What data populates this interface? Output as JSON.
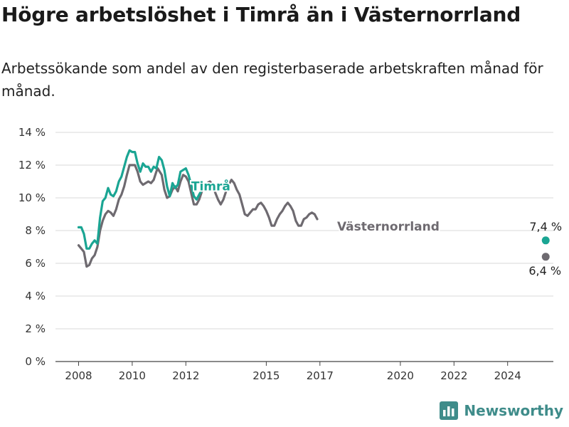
{
  "header": {
    "title": "Högre arbetslöshet i Timrå än i Västernorrland",
    "subtitle": "Arbetssökande som andel av den registerbaserade arbetskraften månad för månad."
  },
  "brand": {
    "name": "Newsworthy",
    "icon": "bar-chart-logo-icon",
    "color": "#3f8c8a"
  },
  "chart_data": {
    "type": "line",
    "title": "",
    "xlabel": "",
    "ylabel": "",
    "ylim": [
      0,
      14
    ],
    "xlim": [
      2007.6,
      2025.8
    ],
    "grid": true,
    "y_ticks": [
      {
        "value": 0,
        "label": "0 %"
      },
      {
        "value": 2,
        "label": "2 %"
      },
      {
        "value": 4,
        "label": "4 %"
      },
      {
        "value": 6,
        "label": "6 %"
      },
      {
        "value": 8,
        "label": "8 %"
      },
      {
        "value": 10,
        "label": "10 %"
      },
      {
        "value": 12,
        "label": "12 %"
      },
      {
        "value": 14,
        "label": "14 %"
      }
    ],
    "x_ticks": [
      {
        "value": 2008,
        "label": "2008"
      },
      {
        "value": 2010,
        "label": "2010"
      },
      {
        "value": 2012,
        "label": "2012"
      },
      {
        "value": 2015,
        "label": "2015"
      },
      {
        "value": 2017,
        "label": "2017"
      },
      {
        "value": 2020,
        "label": "2020"
      },
      {
        "value": 2022,
        "label": "2022"
      },
      {
        "value": 2024,
        "label": "2024"
      }
    ],
    "series": [
      {
        "name": "Västernorrland",
        "color": "#6e6a70",
        "end_label": "6,4 %",
        "points": [
          [
            2008.0,
            7.1
          ],
          [
            2008.1,
            6.9
          ],
          [
            2008.2,
            6.7
          ],
          [
            2008.3,
            5.8
          ],
          [
            2008.4,
            5.9
          ],
          [
            2008.5,
            6.3
          ],
          [
            2008.6,
            6.5
          ],
          [
            2008.7,
            7.0
          ],
          [
            2008.8,
            8.0
          ],
          [
            2008.9,
            8.6
          ],
          [
            2009.0,
            9.0
          ],
          [
            2009.1,
            9.2
          ],
          [
            2009.2,
            9.1
          ],
          [
            2009.3,
            8.9
          ],
          [
            2009.4,
            9.3
          ],
          [
            2009.5,
            9.9
          ],
          [
            2009.6,
            10.2
          ],
          [
            2009.7,
            10.7
          ],
          [
            2009.8,
            11.4
          ],
          [
            2009.9,
            12.0
          ],
          [
            2010.0,
            12.0
          ],
          [
            2010.1,
            12.0
          ],
          [
            2010.2,
            11.6
          ],
          [
            2010.3,
            11.0
          ],
          [
            2010.4,
            10.8
          ],
          [
            2010.5,
            10.9
          ],
          [
            2010.6,
            11.0
          ],
          [
            2010.7,
            10.9
          ],
          [
            2010.8,
            11.1
          ],
          [
            2010.9,
            11.6
          ],
          [
            2010.95,
            11.8
          ],
          [
            2011.1,
            11.4
          ],
          [
            2011.2,
            10.5
          ],
          [
            2011.3,
            10.0
          ],
          [
            2011.4,
            10.1
          ],
          [
            2011.5,
            10.5
          ],
          [
            2011.6,
            10.7
          ],
          [
            2011.7,
            10.4
          ],
          [
            2011.8,
            11.0
          ],
          [
            2011.9,
            11.4
          ],
          [
            2012.0,
            11.3
          ],
          [
            2012.1,
            11.0
          ],
          [
            2012.2,
            10.3
          ],
          [
            2012.3,
            9.6
          ],
          [
            2012.4,
            9.6
          ],
          [
            2012.5,
            9.9
          ],
          [
            2012.6,
            10.4
          ],
          [
            2012.7,
            10.7
          ],
          [
            2012.8,
            10.9
          ],
          [
            2012.9,
            11.0
          ],
          [
            2013.0,
            10.8
          ],
          [
            2013.1,
            10.3
          ],
          [
            2013.2,
            9.9
          ],
          [
            2013.3,
            9.6
          ],
          [
            2013.4,
            9.9
          ],
          [
            2013.5,
            10.4
          ],
          [
            2013.6,
            10.8
          ],
          [
            2013.7,
            11.1
          ],
          [
            2013.8,
            10.9
          ],
          [
            2013.9,
            10.5
          ],
          [
            2014.0,
            10.2
          ],
          [
            2014.1,
            9.6
          ],
          [
            2014.2,
            9.0
          ],
          [
            2014.3,
            8.9
          ],
          [
            2014.4,
            9.1
          ],
          [
            2014.5,
            9.3
          ],
          [
            2014.6,
            9.3
          ],
          [
            2014.7,
            9.6
          ],
          [
            2014.8,
            9.7
          ],
          [
            2014.9,
            9.5
          ],
          [
            2015.0,
            9.2
          ],
          [
            2015.1,
            8.8
          ],
          [
            2015.2,
            8.3
          ],
          [
            2015.3,
            8.3
          ],
          [
            2015.4,
            8.7
          ],
          [
            2015.5,
            9.0
          ],
          [
            2015.6,
            9.2
          ],
          [
            2015.7,
            9.5
          ],
          [
            2015.8,
            9.7
          ],
          [
            2015.9,
            9.5
          ],
          [
            2016.0,
            9.2
          ],
          [
            2016.1,
            8.6
          ],
          [
            2016.2,
            8.3
          ],
          [
            2016.3,
            8.3
          ],
          [
            2016.4,
            8.7
          ],
          [
            2016.5,
            8.8
          ],
          [
            2016.6,
            9.0
          ],
          [
            2016.7,
            9.1
          ],
          [
            2016.8,
            9.0
          ],
          [
            2016.9,
            8.7
          ]
        ]
      },
      {
        "name": "Timrå",
        "color": "#1aa593",
        "end_label": "7,4 %",
        "points": [
          [
            2008.0,
            8.2
          ],
          [
            2008.1,
            8.2
          ],
          [
            2008.2,
            7.8
          ],
          [
            2008.3,
            6.9
          ],
          [
            2008.4,
            6.9
          ],
          [
            2008.5,
            7.2
          ],
          [
            2008.6,
            7.4
          ],
          [
            2008.7,
            7.2
          ],
          [
            2008.8,
            8.8
          ],
          [
            2008.9,
            9.8
          ],
          [
            2009.0,
            10.0
          ],
          [
            2009.1,
            10.6
          ],
          [
            2009.2,
            10.2
          ],
          [
            2009.3,
            10.1
          ],
          [
            2009.4,
            10.4
          ],
          [
            2009.5,
            11.0
          ],
          [
            2009.6,
            11.3
          ],
          [
            2009.7,
            11.9
          ],
          [
            2009.8,
            12.5
          ],
          [
            2009.9,
            12.9
          ],
          [
            2010.0,
            12.8
          ],
          [
            2010.1,
            12.8
          ],
          [
            2010.2,
            12.1
          ],
          [
            2010.3,
            11.6
          ],
          [
            2010.4,
            12.1
          ],
          [
            2010.5,
            11.9
          ],
          [
            2010.6,
            11.9
          ],
          [
            2010.7,
            11.6
          ],
          [
            2010.8,
            11.9
          ],
          [
            2010.9,
            11.8
          ],
          [
            2011.0,
            12.5
          ],
          [
            2011.1,
            12.3
          ],
          [
            2011.2,
            11.7
          ],
          [
            2011.3,
            10.7
          ],
          [
            2011.4,
            10.1
          ],
          [
            2011.5,
            10.9
          ],
          [
            2011.6,
            10.6
          ],
          [
            2011.7,
            10.8
          ],
          [
            2011.8,
            11.6
          ],
          [
            2011.9,
            11.7
          ],
          [
            2012.0,
            11.8
          ],
          [
            2012.1,
            11.4
          ],
          [
            2012.2,
            10.8
          ],
          [
            2012.3,
            10.1
          ],
          [
            2012.4,
            9.9
          ],
          [
            2012.5,
            10.2
          ],
          [
            2012.6,
            10.5
          ],
          [
            2012.7,
            10.5
          ]
        ]
      }
    ],
    "annotations": [
      {
        "text": "Timrå",
        "series": "Timrå",
        "at": [
          2012.93,
          10.45
        ]
      },
      {
        "text": "Västernorrland",
        "series": "Västernorrland",
        "at": [
          2019.55,
          8.0
        ]
      }
    ]
  }
}
